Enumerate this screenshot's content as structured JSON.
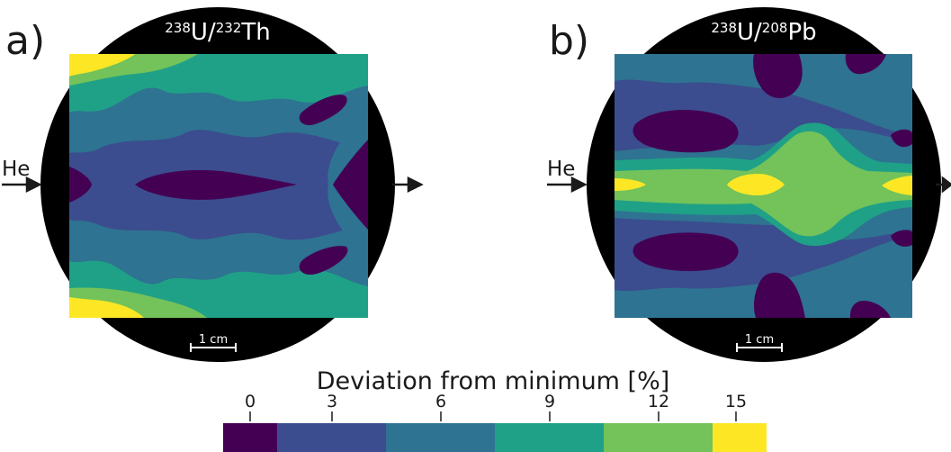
{
  "panels": [
    {
      "letter": "a)",
      "ratio": {
        "num_mass": "238",
        "num_el": "U",
        "sep": "/",
        "den_mass": "232",
        "den_el": "Th"
      },
      "gas_label": "He",
      "scale_bar_label": "1 cm"
    },
    {
      "letter": "b)",
      "ratio": {
        "num_mass": "238",
        "num_el": "U",
        "sep": "/",
        "den_mass": "208",
        "den_el": "Pb"
      },
      "gas_label": "He",
      "scale_bar_label": "1 cm"
    }
  ],
  "colorbar": {
    "title": "Deviation from minimum [%]",
    "ticks": [
      "0",
      "3",
      "6",
      "9",
      "12",
      "15"
    ],
    "colors": [
      "#440154",
      "#3b4d8e",
      "#2e7391",
      "#1fa187",
      "#73c25a",
      "#fde725"
    ]
  },
  "colors": {
    "level0": "#440154",
    "level1": "#3b4d8e",
    "level2": "#2e7391",
    "level3": "#1fa187",
    "level4": "#73c25a",
    "level5": "#fde725",
    "frame": "#000000"
  }
}
